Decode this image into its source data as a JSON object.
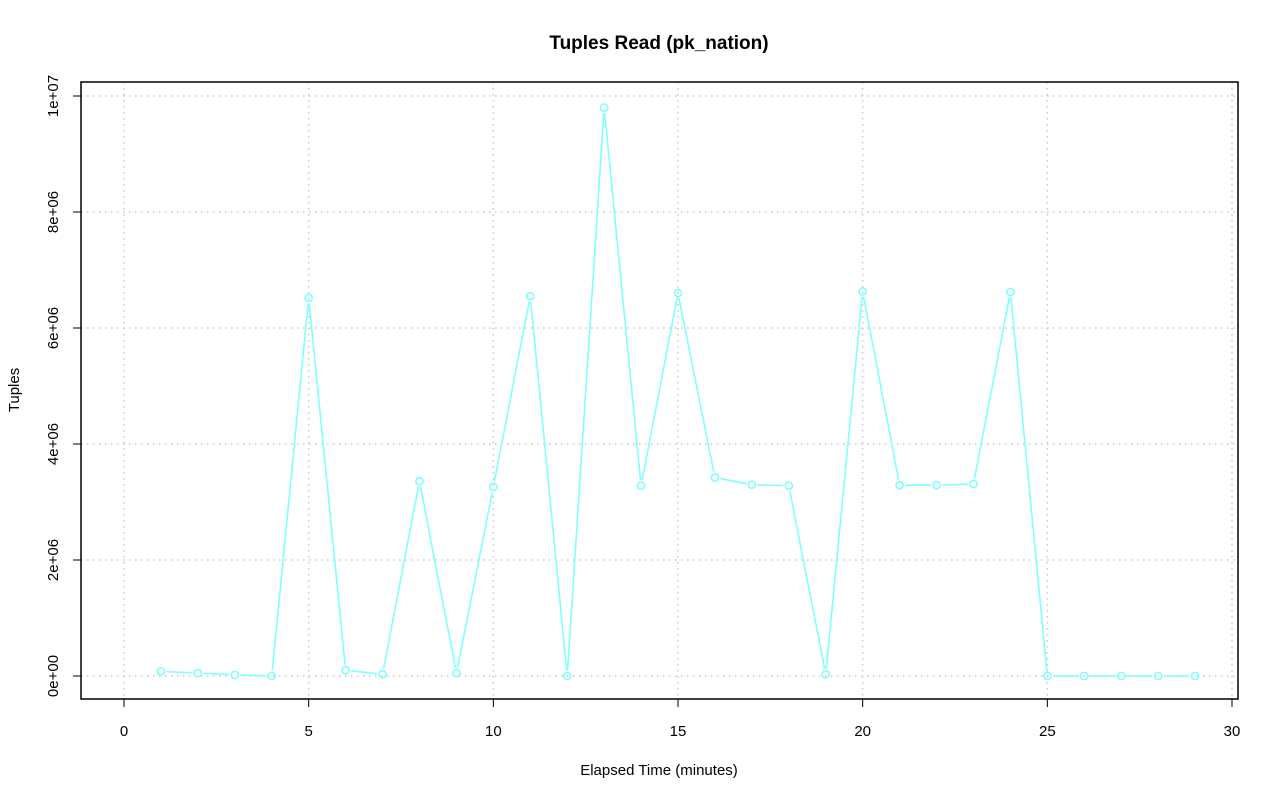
{
  "chart_data": {
    "type": "line",
    "title": "Tuples Read (pk_nation)",
    "xlabel": "Elapsed Time (minutes)",
    "ylabel": "Tuples",
    "xlim": [
      0,
      30
    ],
    "ylim": [
      0,
      10000000
    ],
    "x_ticks": [
      0,
      5,
      10,
      15,
      20,
      25,
      30
    ],
    "x_tick_labels": [
      "0",
      "5",
      "10",
      "15",
      "20",
      "25",
      "30"
    ],
    "y_ticks": [
      0,
      2000000,
      4000000,
      6000000,
      8000000,
      10000000
    ],
    "y_tick_labels": [
      "0e+00",
      "2e+06",
      "4e+06",
      "6e+06",
      "8e+06",
      "1e+07"
    ],
    "grid": true,
    "series_color": "#7fffff",
    "grid_color": "#c8c8c8",
    "series": [
      {
        "x": [
          1,
          2,
          3,
          4,
          5,
          6,
          7,
          8,
          9,
          10,
          11,
          12,
          13,
          14,
          15,
          16,
          17,
          18,
          19,
          20,
          21,
          22,
          23,
          24,
          25,
          26,
          27,
          28,
          29
        ],
        "values": [
          80000,
          50000,
          20000,
          0,
          6520000,
          100000,
          30000,
          3360000,
          50000,
          3260000,
          6550000,
          0,
          9800000,
          3280000,
          6600000,
          3420000,
          3300000,
          3280000,
          30000,
          6630000,
          3290000,
          3290000,
          3310000,
          6620000,
          0,
          0,
          0,
          0,
          0
        ]
      }
    ]
  }
}
